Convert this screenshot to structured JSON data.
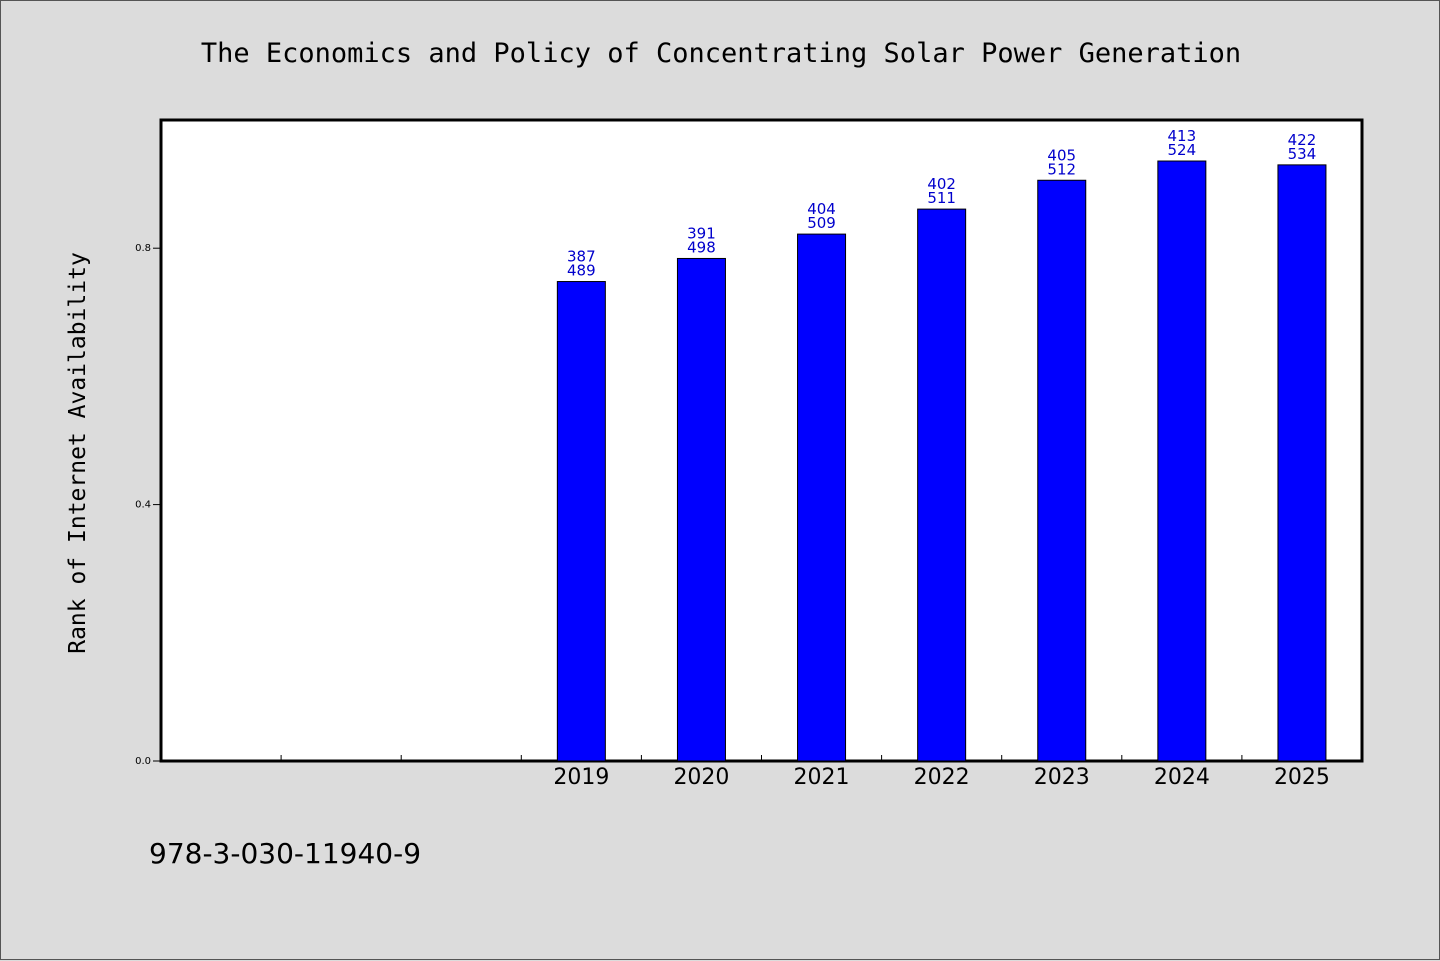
{
  "chart_data": {
    "type": "bar",
    "title": "The Economics and Policy of Concentrating Solar Power Generation",
    "ylabel": "Rank of Internet Availability",
    "xlabel": "",
    "ylim": [
      0,
      1.0
    ],
    "yticks": [
      0.0,
      0.4,
      0.8
    ],
    "ytick_labels": [
      "0.0",
      "0.4",
      "0.8"
    ],
    "slots": 10,
    "categories": [
      "2019",
      "2020",
      "2021",
      "2022",
      "2023",
      "2024",
      "2025"
    ],
    "values": [
      0.748,
      0.784,
      0.822,
      0.861,
      0.906,
      0.936,
      0.93
    ],
    "labels_top": [
      "387",
      "391",
      "404",
      "402",
      "405",
      "413",
      "422"
    ],
    "labels_bottom": [
      "489",
      "498",
      "509",
      "511",
      "512",
      "524",
      "534"
    ],
    "bar_color": "#0000ff",
    "label_color": "#0000cc",
    "grid": false
  },
  "footer": {
    "isbn": "978-3-030-11940-9"
  }
}
